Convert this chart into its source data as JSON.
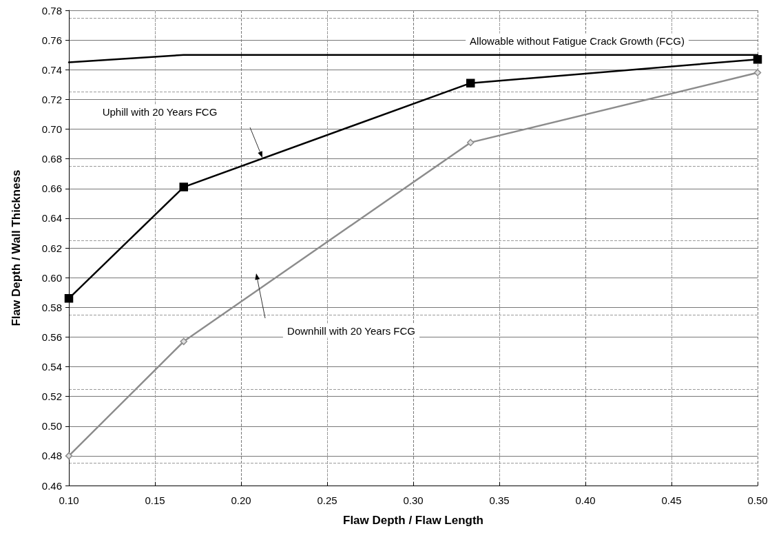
{
  "chart_data": {
    "type": "line",
    "xlabel": "Flaw Depth / Flaw Length",
    "ylabel": "Flaw Depth / Wall Thickness",
    "x": [
      0.1,
      0.1667,
      0.3333,
      0.5
    ],
    "series": [
      {
        "color": "#000000",
        "marker": "none",
        "x": [
          0.1,
          0.1667,
          0.5
        ],
        "values": [
          0.745,
          0.75,
          0.75
        ]
      },
      {
        "color": "#000000",
        "marker": "square",
        "values": [
          0.586,
          0.661,
          0.731,
          0.747
        ]
      },
      {
        "color": "#8c8c8c",
        "marker": "diamond",
        "values": [
          0.48,
          0.557,
          0.691,
          0.738
        ]
      }
    ],
    "annotations": [
      "Allowable without Fatigue Crack Growth (FCG)",
      "Uphill with 20 Years FCG",
      "Downhill with 20 Years FCG"
    ],
    "xlim": [
      0.1,
      0.5
    ],
    "xticks": [
      {
        "value": 0.1,
        "label": "0.10"
      },
      0.15,
      {
        "value": 0.2,
        "label": "0.20"
      },
      0.25,
      {
        "value": 0.3,
        "label": "0.30"
      },
      0.35,
      {
        "value": 0.4,
        "label": "0.40"
      },
      0.45,
      {
        "value": 0.5,
        "label": "0.50"
      }
    ],
    "ylim": [
      0.46,
      0.78
    ],
    "yticks": [
      0.46,
      0.48,
      {
        "value": 0.5,
        "label": "0.50"
      },
      0.52,
      0.54,
      0.56,
      0.58,
      {
        "value": 0.6,
        "label": "0.60"
      },
      0.62,
      0.64,
      0.66,
      0.68,
      {
        "value": 0.7,
        "label": "0.70"
      },
      0.72,
      0.74,
      0.76,
      0.78
    ],
    "grid": true,
    "line_style": "solid"
  }
}
